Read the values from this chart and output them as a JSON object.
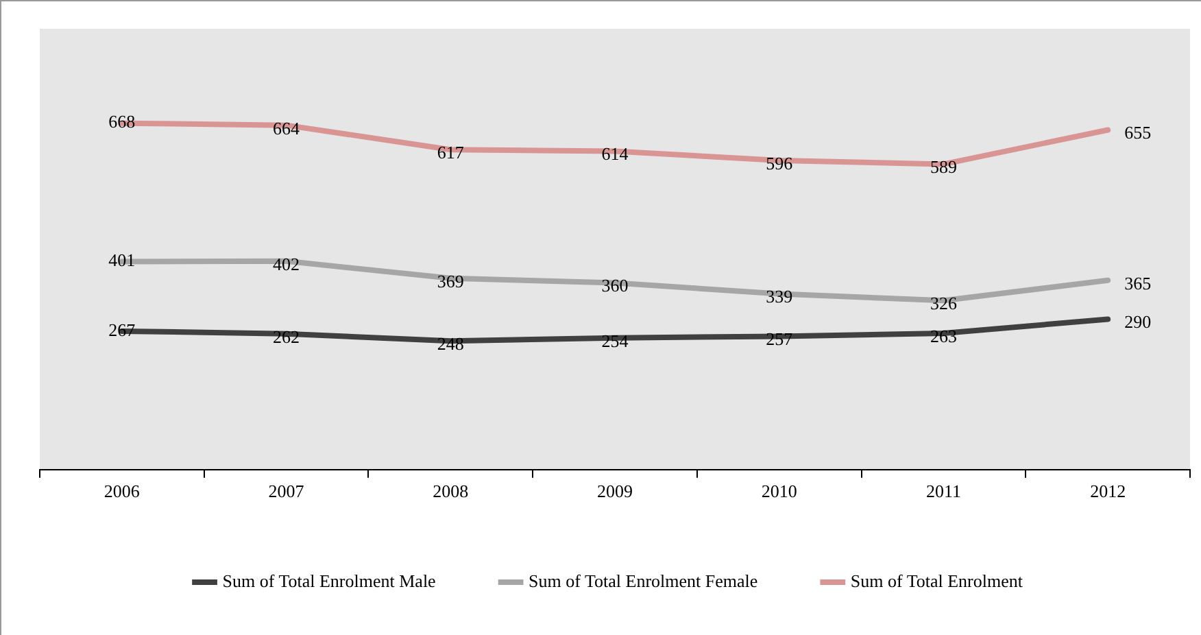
{
  "chart_data": {
    "type": "line",
    "categories": [
      "2006",
      "2007",
      "2008",
      "2009",
      "2010",
      "2011",
      "2012"
    ],
    "series": [
      {
        "name": "Sum of Total Enrolment Male",
        "color": "#404040",
        "values": [
          267,
          262,
          248,
          254,
          257,
          263,
          290
        ]
      },
      {
        "name": "Sum of Total Enrolment Female",
        "color": "#a6a6a6",
        "values": [
          401,
          402,
          369,
          360,
          339,
          326,
          365
        ]
      },
      {
        "name": "Sum of Total Enrolment",
        "color": "#d99594",
        "values": [
          668,
          664,
          617,
          614,
          596,
          589,
          655
        ]
      }
    ],
    "ylim": [
      0,
      850
    ],
    "tick_labels": "x",
    "data_labels": true,
    "legend": "bottom",
    "marker": "none",
    "line_style": "solid"
  }
}
